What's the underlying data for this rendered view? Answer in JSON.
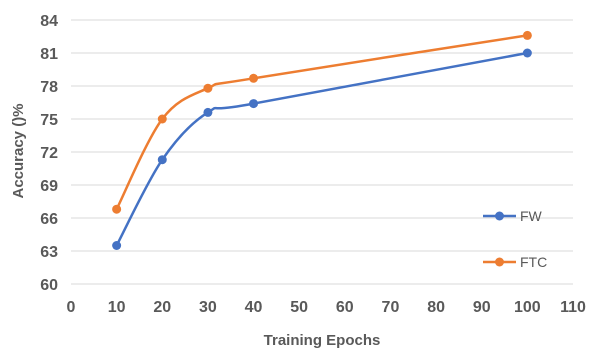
{
  "chart_data": {
    "type": "line",
    "title": "",
    "xlabel": "Training Epochs",
    "ylabel": "Accuracy ()%",
    "xlim": [
      0,
      110
    ],
    "ylim": [
      60,
      84
    ],
    "xticks": [
      0,
      10,
      20,
      30,
      40,
      50,
      60,
      70,
      80,
      90,
      100,
      110
    ],
    "yticks": [
      60,
      63,
      66,
      69,
      72,
      75,
      78,
      81,
      84
    ],
    "grid": "horizontal",
    "legend_position": "right",
    "series": [
      {
        "name": "FW",
        "color": "#4472C4",
        "x": [
          10,
          20,
          30,
          40,
          100
        ],
        "y": [
          63.5,
          71.3,
          75.6,
          76.4,
          81.0
        ]
      },
      {
        "name": "FTC",
        "color": "#ED7D31",
        "x": [
          10,
          20,
          30,
          40,
          100
        ],
        "y": [
          66.8,
          75.0,
          77.8,
          78.7,
          82.6
        ]
      }
    ]
  }
}
